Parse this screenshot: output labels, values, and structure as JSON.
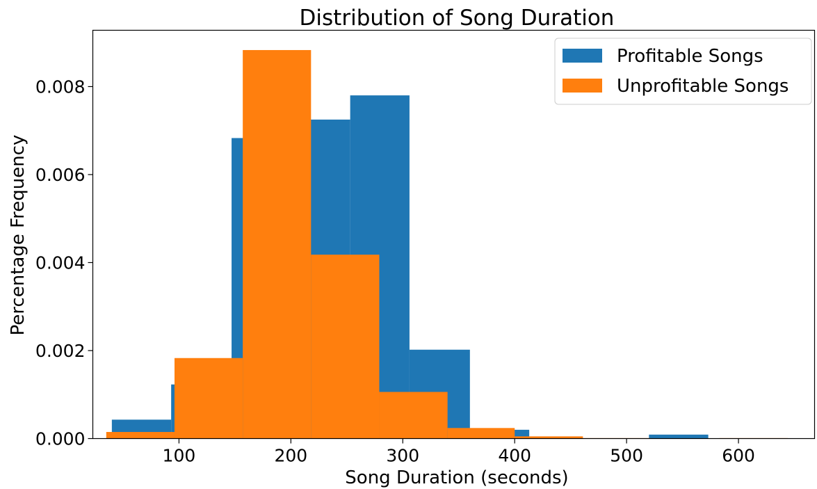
{
  "chart_data": {
    "type": "bar",
    "subtype": "histogram-overlay",
    "title": "Distribution of Song Duration",
    "xlabel": "Song Duration (seconds)",
    "ylabel": "Percentage Frequency",
    "xlim": [
      23,
      668
    ],
    "ylim": [
      0,
      0.00928
    ],
    "xticks": [
      100,
      200,
      300,
      400,
      500,
      600
    ],
    "xtick_labels": [
      "100",
      "200",
      "300",
      "400",
      "500",
      "600"
    ],
    "yticks": [
      0,
      0.002,
      0.004,
      0.006,
      0.008
    ],
    "ytick_labels": [
      "0.000",
      "0.002",
      "0.004",
      "0.006",
      "0.008"
    ],
    "grid": false,
    "legend_position": "top-right",
    "series": [
      {
        "name": "Profitable Songs",
        "color": "#1f77b4",
        "bins": [
          {
            "x0": 40,
            "x1": 93,
            "value": 0.00043
          },
          {
            "x0": 93,
            "x1": 147,
            "value": 0.00123
          },
          {
            "x0": 147,
            "x1": 200,
            "value": 0.00683
          },
          {
            "x0": 200,
            "x1": 253,
            "value": 0.00725
          },
          {
            "x0": 253,
            "x1": 306,
            "value": 0.0078
          },
          {
            "x0": 306,
            "x1": 360,
            "value": 0.00202
          },
          {
            "x0": 360,
            "x1": 413,
            "value": 0.0002
          },
          {
            "x0": 413,
            "x1": 466,
            "value": 0.0
          },
          {
            "x0": 466,
            "x1": 520,
            "value": 0.0
          },
          {
            "x0": 520,
            "x1": 573,
            "value": 9e-05
          }
        ]
      },
      {
        "name": "Unprofitable Songs",
        "color": "#ff7f0e",
        "bins": [
          {
            "x0": 35,
            "x1": 96,
            "value": 0.00015
          },
          {
            "x0": 96,
            "x1": 157,
            "value": 0.00183
          },
          {
            "x0": 157,
            "x1": 218,
            "value": 0.00883
          },
          {
            "x0": 218,
            "x1": 279,
            "value": 0.00418
          },
          {
            "x0": 279,
            "x1": 340,
            "value": 0.00106
          },
          {
            "x0": 340,
            "x1": 400,
            "value": 0.00024
          },
          {
            "x0": 400,
            "x1": 461,
            "value": 5e-05
          },
          {
            "x0": 461,
            "x1": 522,
            "value": 1e-05
          },
          {
            "x0": 522,
            "x1": 583,
            "value": 0.0
          },
          {
            "x0": 583,
            "x1": 644,
            "value": 1e-05
          }
        ]
      }
    ]
  }
}
